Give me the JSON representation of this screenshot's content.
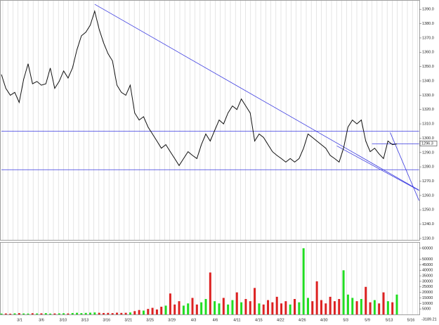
{
  "chart_data": [
    {
      "type": "line",
      "color": "#111111",
      "values": [
        1344.5,
        1334.8,
        1330,
        1332,
        1325,
        1341,
        1352,
        1338,
        1339.6,
        1337,
        1338,
        1349,
        1334.8,
        1339.6,
        1347,
        1342,
        1349,
        1361.7,
        1371.5,
        1374,
        1378.9,
        1388.7,
        1376,
        1366.6,
        1359,
        1354,
        1337,
        1332,
        1330,
        1337,
        1317.6,
        1312.7,
        1315,
        1307.8,
        1302.9,
        1298,
        1293,
        1295.5,
        1290.6,
        1285.8,
        1280.9,
        1285.8,
        1290.6,
        1288,
        1285.8,
        1295.5,
        1302.9,
        1298,
        1305.4,
        1312.7,
        1310,
        1317.6,
        1322.5,
        1320,
        1327.4,
        1322.5,
        1317.6,
        1298,
        1302.9,
        1300.5,
        1295.5,
        1290.6,
        1288,
        1285.8,
        1283.3,
        1285.8,
        1283.3,
        1285.8,
        1293,
        1302.9,
        1300.5,
        1298,
        1295.5,
        1293,
        1288,
        1285.8,
        1283.3,
        1293,
        1307.8,
        1312.7,
        1310,
        1312.7,
        1298,
        1290.6,
        1293,
        1289,
        1285.8,
        1298,
        1295.5,
        1296
      ],
      "ylim": [
        1229,
        1396
      ],
      "yticks": [
        {
          "value": 1230,
          "label": "1230.0"
        },
        {
          "value": 1240,
          "label": "1240.0"
        },
        {
          "value": 1250,
          "label": "1250.0"
        },
        {
          "value": 1260,
          "label": "1260.0"
        },
        {
          "value": 1270,
          "label": "1270.0"
        },
        {
          "value": 1280,
          "label": "1280.0"
        },
        {
          "value": 1290,
          "label": "1290.0"
        },
        {
          "value": 1300,
          "label": "1300.0"
        },
        {
          "value": 1310,
          "label": "1310.0"
        },
        {
          "value": 1320,
          "label": "1320.0"
        },
        {
          "value": 1330,
          "label": "1330.0"
        },
        {
          "value": 1340,
          "label": "1340.0"
        },
        {
          "value": 1350,
          "label": "1350.0"
        },
        {
          "value": 1360,
          "label": "1360.0"
        },
        {
          "value": 1370,
          "label": "1370.0"
        },
        {
          "value": 1380,
          "label": "1380.0"
        },
        {
          "value": 1390,
          "label": "1390.0"
        }
      ],
      "trendline_color": "#3a3ae0",
      "trendlines": [
        [
          [
            21,
            1393.5
          ],
          [
            94,
            1263.7
          ]
        ],
        [
          [
            0,
            1304.9
          ],
          [
            94,
            1304.9
          ]
        ],
        [
          [
            0,
            1278
          ],
          [
            94,
            1278
          ]
        ],
        [
          [
            75.5,
            1294.6
          ],
          [
            94,
            1263.5
          ]
        ],
        [
          [
            87.5,
            1304
          ],
          [
            94,
            1256.4
          ]
        ],
        [
          [
            83.4,
            1296
          ],
          [
            94,
            1296
          ]
        ]
      ],
      "last_price": {
        "value": 1296.3,
        "label": "1296.3"
      }
    },
    {
      "type": "bar",
      "up_color": "#22dd22",
      "down_color": "#dd2222",
      "values": [
        800,
        900,
        700,
        1000,
        1200,
        900,
        800,
        1100,
        900,
        1000,
        1200,
        800,
        900,
        1000,
        1100,
        900,
        1300,
        1500,
        1200,
        1400,
        1600,
        1800,
        1500,
        1300,
        1400,
        1200,
        1600,
        1400,
        1500,
        1800,
        3000,
        4000,
        3500,
        5000,
        6000,
        4500,
        7000,
        8000,
        19000,
        9000,
        12000,
        8000,
        10000,
        15000,
        9000,
        11000,
        14000,
        38000,
        12000,
        10000,
        15000,
        9000,
        13000,
        20000,
        11000,
        14000,
        12000,
        24000,
        10000,
        9000,
        13000,
        11000,
        16000,
        10000,
        12000,
        9000,
        14000,
        11000,
        60000,
        15000,
        12000,
        30000,
        13000,
        10000,
        16000,
        12000,
        14000,
        40000,
        18000,
        15000,
        12000,
        14000,
        25000,
        11000,
        13000,
        10000,
        20000,
        12000,
        11000,
        18000
      ],
      "ylim": [
        0,
        65000
      ],
      "yticks": [
        5000,
        10000,
        15000,
        20000,
        25000,
        30000,
        35000,
        40000,
        45000,
        50000,
        60000
      ],
      "footer": "-3189.21",
      "x_labels": [
        "3/1",
        "3/6",
        "3/10",
        "3/13",
        "3/16",
        "3/21",
        "3/25",
        "3/29",
        "4/3",
        "4/6",
        "4/11",
        "4/15",
        "4/22",
        "4/26",
        "4/30",
        "5/3",
        "5/9",
        "5/13",
        "5/16"
      ]
    }
  ]
}
